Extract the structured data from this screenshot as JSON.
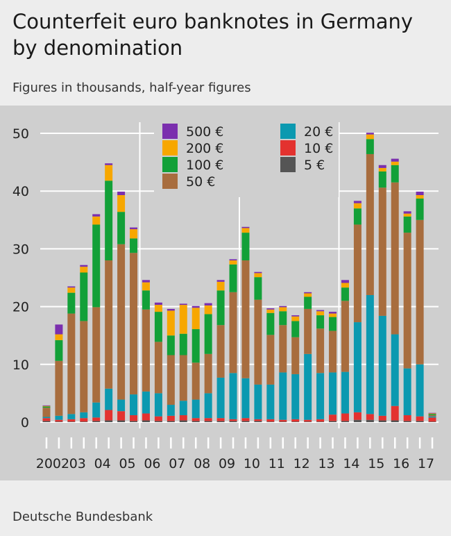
{
  "title": "Counterfeit euro banknotes in Germany by denomination",
  "subtitle": "Figures in thousands, half-year figures",
  "source": "Deutsche Bundesbank",
  "chart_data": {
    "type": "bar",
    "stacked": true,
    "ylim": [
      0,
      50
    ],
    "yticks": [
      0,
      10,
      20,
      30,
      40,
      50
    ],
    "year_labels": [
      "2002",
      "03",
      "04",
      "05",
      "06",
      "07",
      "08",
      "09",
      "10",
      "11",
      "12",
      "13",
      "14",
      "15",
      "16",
      "17"
    ],
    "x": [
      "2002 H1",
      "2002 H2",
      "2003 H1",
      "2003 H2",
      "2004 H1",
      "2004 H2",
      "2005 H1",
      "2005 H2",
      "2006 H1",
      "2006 H2",
      "2007 H1",
      "2007 H2",
      "2008 H1",
      "2008 H2",
      "2009 H1",
      "2009 H2",
      "2010 H1",
      "2010 H2",
      "2011 H1",
      "2011 H2",
      "2012 H1",
      "2012 H2",
      "2013 H1",
      "2013 H2",
      "2014 H1",
      "2014 H2",
      "2015 H1",
      "2015 H2",
      "2016 H1",
      "2016 H2",
      "2017 H1",
      "2017 H2"
    ],
    "legend": [
      {
        "name": "500 €",
        "color": "#7b2fae"
      },
      {
        "name": "200 €",
        "color": "#f7a700"
      },
      {
        "name": "100 €",
        "color": "#12a038"
      },
      {
        "name": "50 €",
        "color": "#a86d3e"
      },
      {
        "name": "20 €",
        "color": "#0b99b0"
      },
      {
        "name": "10 €",
        "color": "#e3322f"
      },
      {
        "name": "5 €",
        "color": "#555555"
      }
    ],
    "series": [
      {
        "name": "5 €",
        "color": "#555555",
        "values": [
          0.2,
          0.1,
          0.1,
          0.1,
          0.2,
          0.3,
          0.3,
          0.2,
          0.3,
          0.2,
          0.2,
          0.3,
          0.2,
          0.2,
          0.2,
          0.2,
          0.2,
          0.2,
          0.1,
          0.1,
          0.1,
          0.1,
          0.1,
          0.2,
          0.2,
          0.4,
          0.4,
          0.3,
          0.3,
          0.2,
          0.2,
          0.1
        ]
      },
      {
        "name": "10 €",
        "color": "#e3322f",
        "values": [
          0.5,
          0.3,
          0.4,
          0.6,
          0.6,
          1.8,
          1.6,
          1.0,
          1.2,
          0.8,
          0.9,
          0.9,
          0.5,
          0.5,
          0.5,
          0.3,
          0.5,
          0.3,
          0.4,
          0.3,
          0.4,
          0.3,
          0.4,
          1.1,
          1.3,
          1.3,
          1.0,
          0.8,
          2.5,
          1.0,
          0.8,
          0.7
        ]
      },
      {
        "name": "20 €",
        "color": "#0b99b0",
        "values": [
          0.2,
          0.7,
          0.9,
          1.0,
          2.6,
          3.7,
          2.0,
          3.6,
          3.8,
          4.0,
          1.9,
          2.5,
          3.2,
          4.3,
          7.0,
          8.0,
          6.9,
          6.0,
          6.0,
          8.2,
          7.8,
          11.4,
          8.0,
          7.3,
          7.2,
          15.6,
          20.6,
          17.3,
          12.4,
          8.1,
          9.0,
          0.2
        ]
      },
      {
        "name": "50 €",
        "color": "#a86d3e",
        "values": [
          1.6,
          9.5,
          17.4,
          15.8,
          16.5,
          22.2,
          26.9,
          24.5,
          14.2,
          8.9,
          8.6,
          7.9,
          6.4,
          6.8,
          9.1,
          14.0,
          20.4,
          14.7,
          8.6,
          8.2,
          6.4,
          7.8,
          7.7,
          7.2,
          12.3,
          16.9,
          24.4,
          22.2,
          26.3,
          23.5,
          25.0,
          0.2
        ]
      },
      {
        "name": "100 €",
        "color": "#12a038",
        "values": [
          0.2,
          3.6,
          3.6,
          8.4,
          14.3,
          13.8,
          5.6,
          2.5,
          3.3,
          5.2,
          3.4,
          3.7,
          5.8,
          6.9,
          6.0,
          4.8,
          4.8,
          3.9,
          3.8,
          2.4,
          2.8,
          2.1,
          2.3,
          2.4,
          2.3,
          2.8,
          2.6,
          2.8,
          3.0,
          2.8,
          3.7,
          0.2
        ]
      },
      {
        "name": "200 €",
        "color": "#f7a700",
        "values": [
          0.1,
          1.0,
          0.9,
          1.0,
          1.4,
          2.7,
          2.9,
          1.6,
          1.4,
          1.2,
          4.3,
          5.0,
          3.7,
          1.5,
          1.5,
          0.7,
          0.8,
          0.7,
          0.6,
          0.7,
          0.8,
          0.6,
          0.7,
          0.6,
          0.8,
          0.9,
          0.8,
          0.6,
          0.6,
          0.5,
          0.6,
          0.1
        ]
      },
      {
        "name": "500 €",
        "color": "#7b2fae",
        "values": [
          0.1,
          1.7,
          0.2,
          0.3,
          0.4,
          0.3,
          0.6,
          0.3,
          0.4,
          0.4,
          0.3,
          0.2,
          0.3,
          0.4,
          0.3,
          0.2,
          0.2,
          0.2,
          0.2,
          0.2,
          0.2,
          0.2,
          0.2,
          0.3,
          0.5,
          0.4,
          0.3,
          0.5,
          0.5,
          0.4,
          0.6,
          0.1
        ]
      }
    ],
    "grid": true,
    "legend_placement": "top-center"
  }
}
